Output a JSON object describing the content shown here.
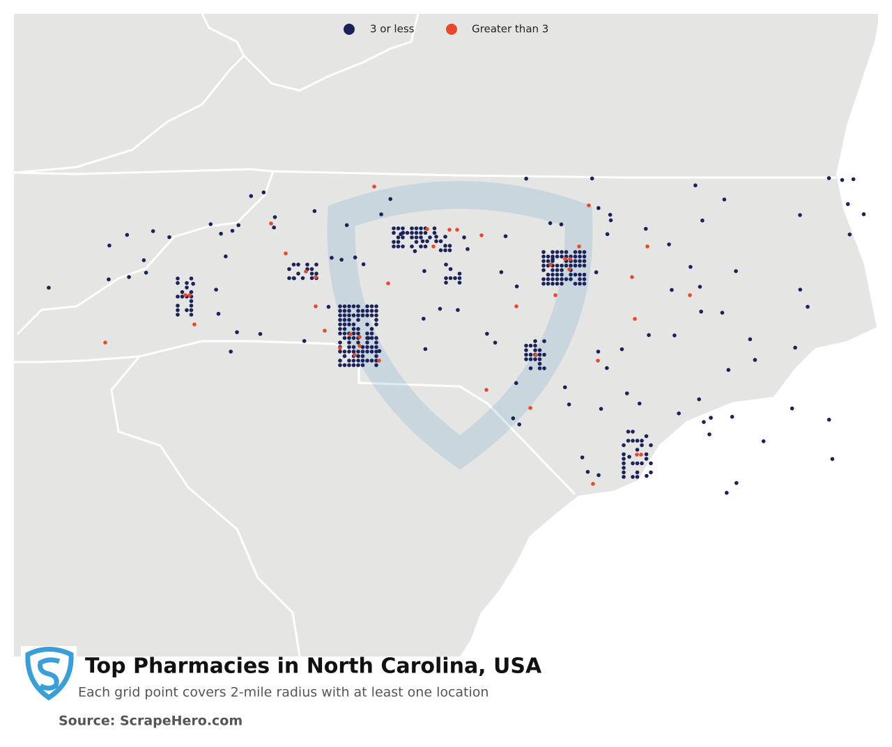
{
  "legend": [
    {
      "name": "3 or less",
      "color": "#1b2259"
    },
    {
      "name": "Greater than 3",
      "color": "#e8492a"
    }
  ],
  "title": "Top Pharmacies in North Carolina, USA",
  "subtitle": "Each grid point covers 2-mile radius with at least one location",
  "source": "Source: ScrapeHero.com"
}
